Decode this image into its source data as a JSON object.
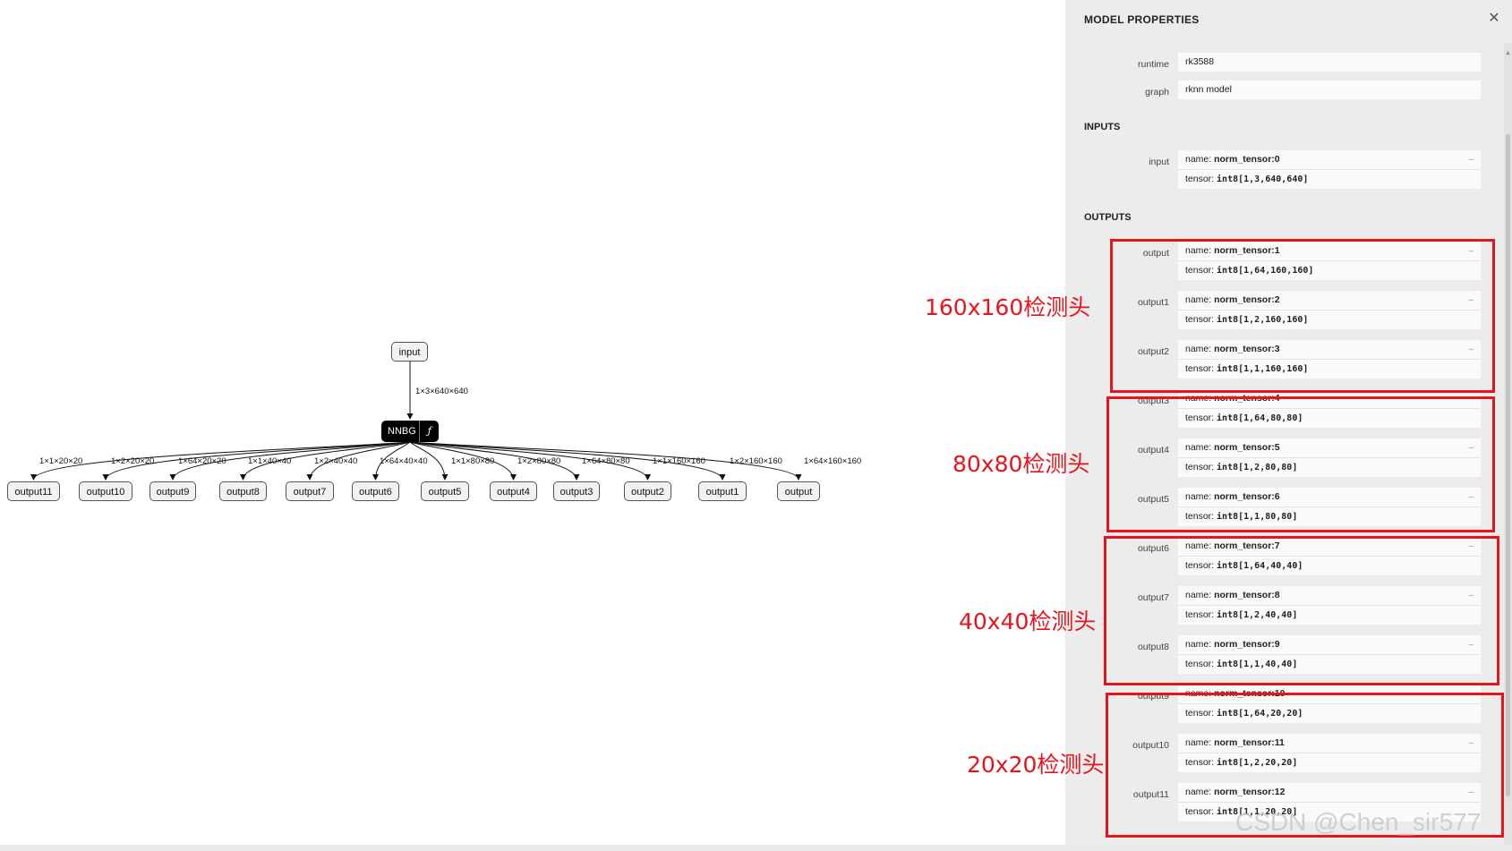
{
  "graph": {
    "input_node": {
      "label": "input"
    },
    "input_edge_label": "1×3×640×640",
    "nnbg_node": {
      "label": "NNBG",
      "fn": "ƒ"
    },
    "outputs": [
      {
        "label": "output11",
        "edge": "1×1×20×20"
      },
      {
        "label": "output10",
        "edge": "1×2×20×20"
      },
      {
        "label": "output9",
        "edge": "1×64×20×20"
      },
      {
        "label": "output8",
        "edge": "1×1×40×40"
      },
      {
        "label": "output7",
        "edge": "1×2×40×40"
      },
      {
        "label": "output6",
        "edge": "1×64×40×40"
      },
      {
        "label": "output5",
        "edge": "1×1×80×80"
      },
      {
        "label": "output4",
        "edge": "1×2×80×80"
      },
      {
        "label": "output3",
        "edge": "1×64×80×80"
      },
      {
        "label": "output2",
        "edge": "1×1×160×160"
      },
      {
        "label": "output1",
        "edge": "1×2×160×160"
      },
      {
        "label": "output",
        "edge": "1×64×160×160"
      }
    ]
  },
  "panel": {
    "title": "MODEL PROPERTIES",
    "close_icon": "close-icon",
    "properties": [
      {
        "label": "runtime",
        "value": "rk3588"
      },
      {
        "label": "graph",
        "value": "rknn model"
      }
    ],
    "inputs_header": "INPUTS",
    "inputs": [
      {
        "label": "input",
        "name": "norm_tensor:0",
        "tensor": "int8[1,3,640,640]"
      }
    ],
    "outputs_header": "OUTPUTS",
    "name_prefix": "name: ",
    "tensor_prefix": "tensor: ",
    "outputs": [
      {
        "label": "output",
        "name": "norm_tensor:1",
        "tensor": "int8[1,64,160,160]"
      },
      {
        "label": "output1",
        "name": "norm_tensor:2",
        "tensor": "int8[1,2,160,160]"
      },
      {
        "label": "output2",
        "name": "norm_tensor:3",
        "tensor": "int8[1,1,160,160]"
      },
      {
        "label": "output3",
        "name": "norm_tensor:4",
        "tensor": "int8[1,64,80,80]"
      },
      {
        "label": "output4",
        "name": "norm_tensor:5",
        "tensor": "int8[1,2,80,80]"
      },
      {
        "label": "output5",
        "name": "norm_tensor:6",
        "tensor": "int8[1,1,80,80]"
      },
      {
        "label": "output6",
        "name": "norm_tensor:7",
        "tensor": "int8[1,64,40,40]"
      },
      {
        "label": "output7",
        "name": "norm_tensor:8",
        "tensor": "int8[1,2,40,40]"
      },
      {
        "label": "output8",
        "name": "norm_tensor:9",
        "tensor": "int8[1,1,40,40]"
      },
      {
        "label": "output9",
        "name": "norm_tensor:10",
        "tensor": "int8[1,64,20,20]"
      },
      {
        "label": "output10",
        "name": "norm_tensor:11",
        "tensor": "int8[1,2,20,20]"
      },
      {
        "label": "output11",
        "name": "norm_tensor:12",
        "tensor": "int8[1,1,20,20]"
      }
    ]
  },
  "annotations": {
    "color": "#e8141c",
    "labels": [
      "160x160检测头",
      "80x80检测头",
      "40x40检测头",
      "20x20检测头"
    ]
  },
  "watermark": "CSDN @Chen_sir577"
}
